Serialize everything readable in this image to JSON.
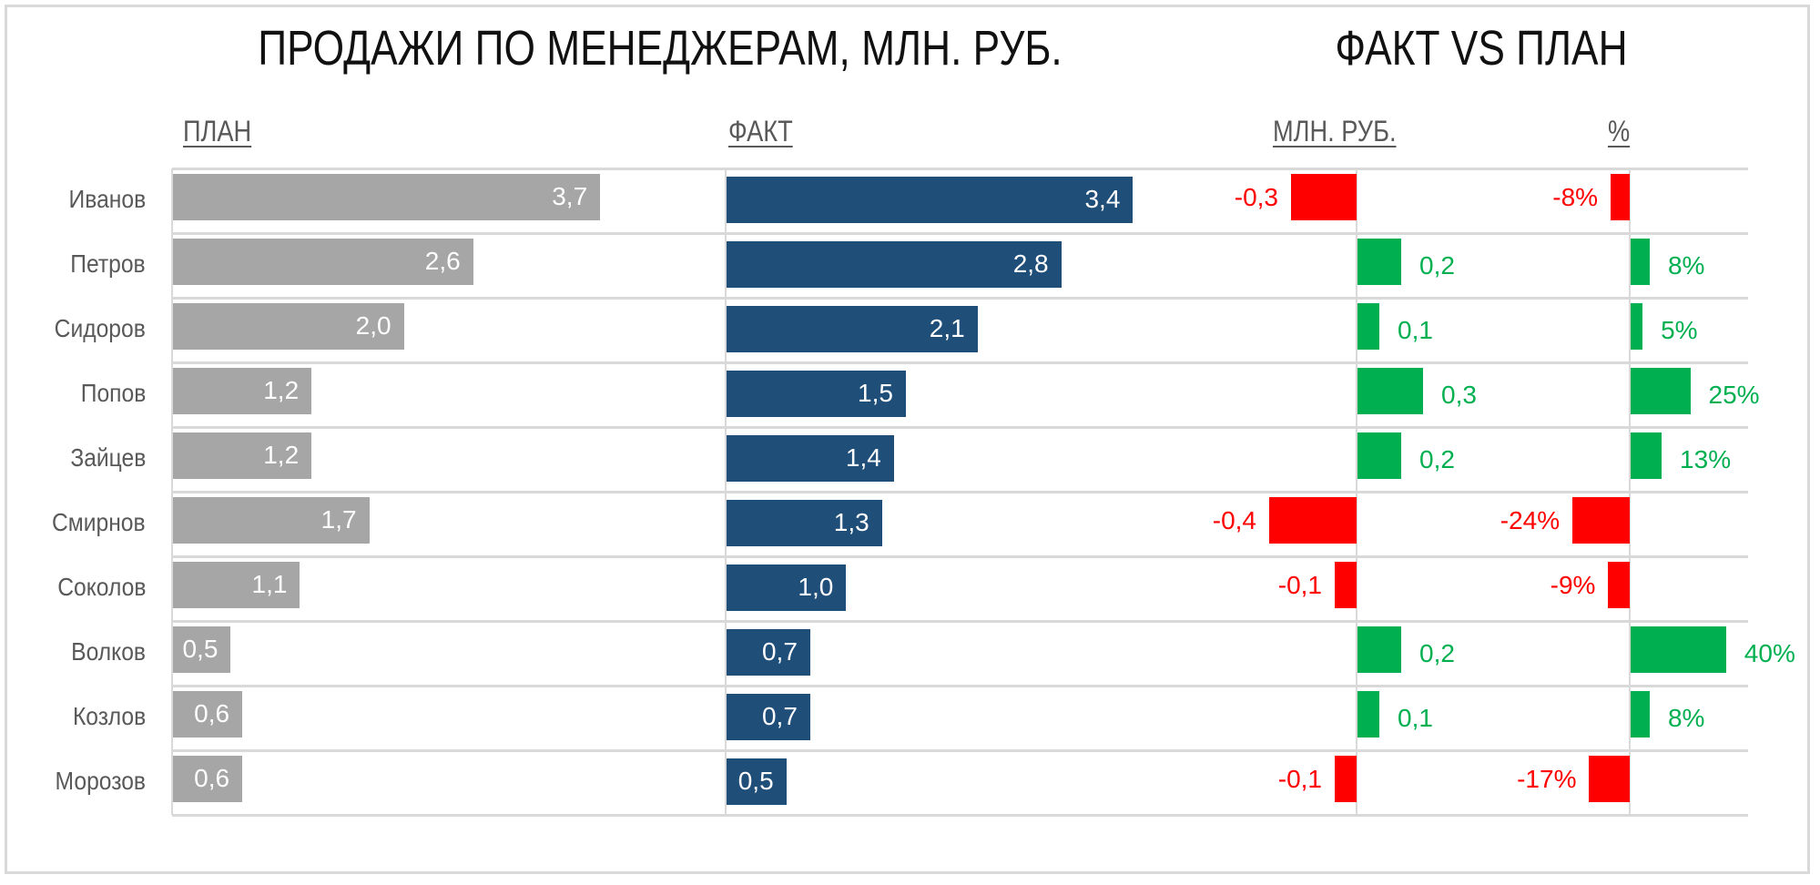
{
  "title": "ПРОДАЖИ ПО МЕНЕДЖЕРАМ, МЛН. РУБ.",
  "title2": "ФАКТ VS ПЛАН",
  "headers": {
    "plan": "ПЛАН",
    "fact": "ФАКТ",
    "diff": "МЛН. РУБ.",
    "pct": "%"
  },
  "colors": {
    "plan": "#a6a6a6",
    "fact": "#1f4e79",
    "negative": "#ff0000",
    "positive": "#00b050"
  },
  "chart_data": {
    "type": "bar",
    "categories": [
      "Иванов",
      "Петров",
      "Сидоров",
      "Попов",
      "Зайцев",
      "Смирнов",
      "Соколов",
      "Волков",
      "Козлов",
      "Морозов"
    ],
    "series": [
      {
        "name": "ПЛАН",
        "values": [
          3.7,
          2.6,
          2.0,
          1.2,
          1.2,
          1.7,
          1.1,
          0.5,
          0.6,
          0.6
        ],
        "labels": [
          "3,7",
          "2,6",
          "2,0",
          "1,2",
          "1,2",
          "1,7",
          "1,1",
          "0,5",
          "0,6",
          "0,6"
        ]
      },
      {
        "name": "ФАКТ",
        "values": [
          3.4,
          2.8,
          2.1,
          1.5,
          1.4,
          1.3,
          1.0,
          0.7,
          0.7,
          0.5
        ],
        "labels": [
          "3,4",
          "2,8",
          "2,1",
          "1,5",
          "1,4",
          "1,3",
          "1,0",
          "0,7",
          "0,7",
          "0,5"
        ]
      },
      {
        "name": "МЛН. РУБ.",
        "values": [
          -0.3,
          0.2,
          0.1,
          0.3,
          0.2,
          -0.4,
          -0.1,
          0.2,
          0.1,
          -0.1
        ],
        "labels": [
          "-0,3",
          "0,2",
          "0,1",
          "0,3",
          "0,2",
          "-0,4",
          "-0,1",
          "0,2",
          "0,1",
          "-0,1"
        ]
      },
      {
        "name": "%",
        "values": [
          -8,
          8,
          5,
          25,
          13,
          -24,
          -9,
          40,
          8,
          -17
        ],
        "labels": [
          "-8%",
          "8%",
          "5%",
          "25%",
          "13%",
          "-24%",
          "-9%",
          "40%",
          "8%",
          "-17%"
        ]
      }
    ],
    "grid": true
  }
}
